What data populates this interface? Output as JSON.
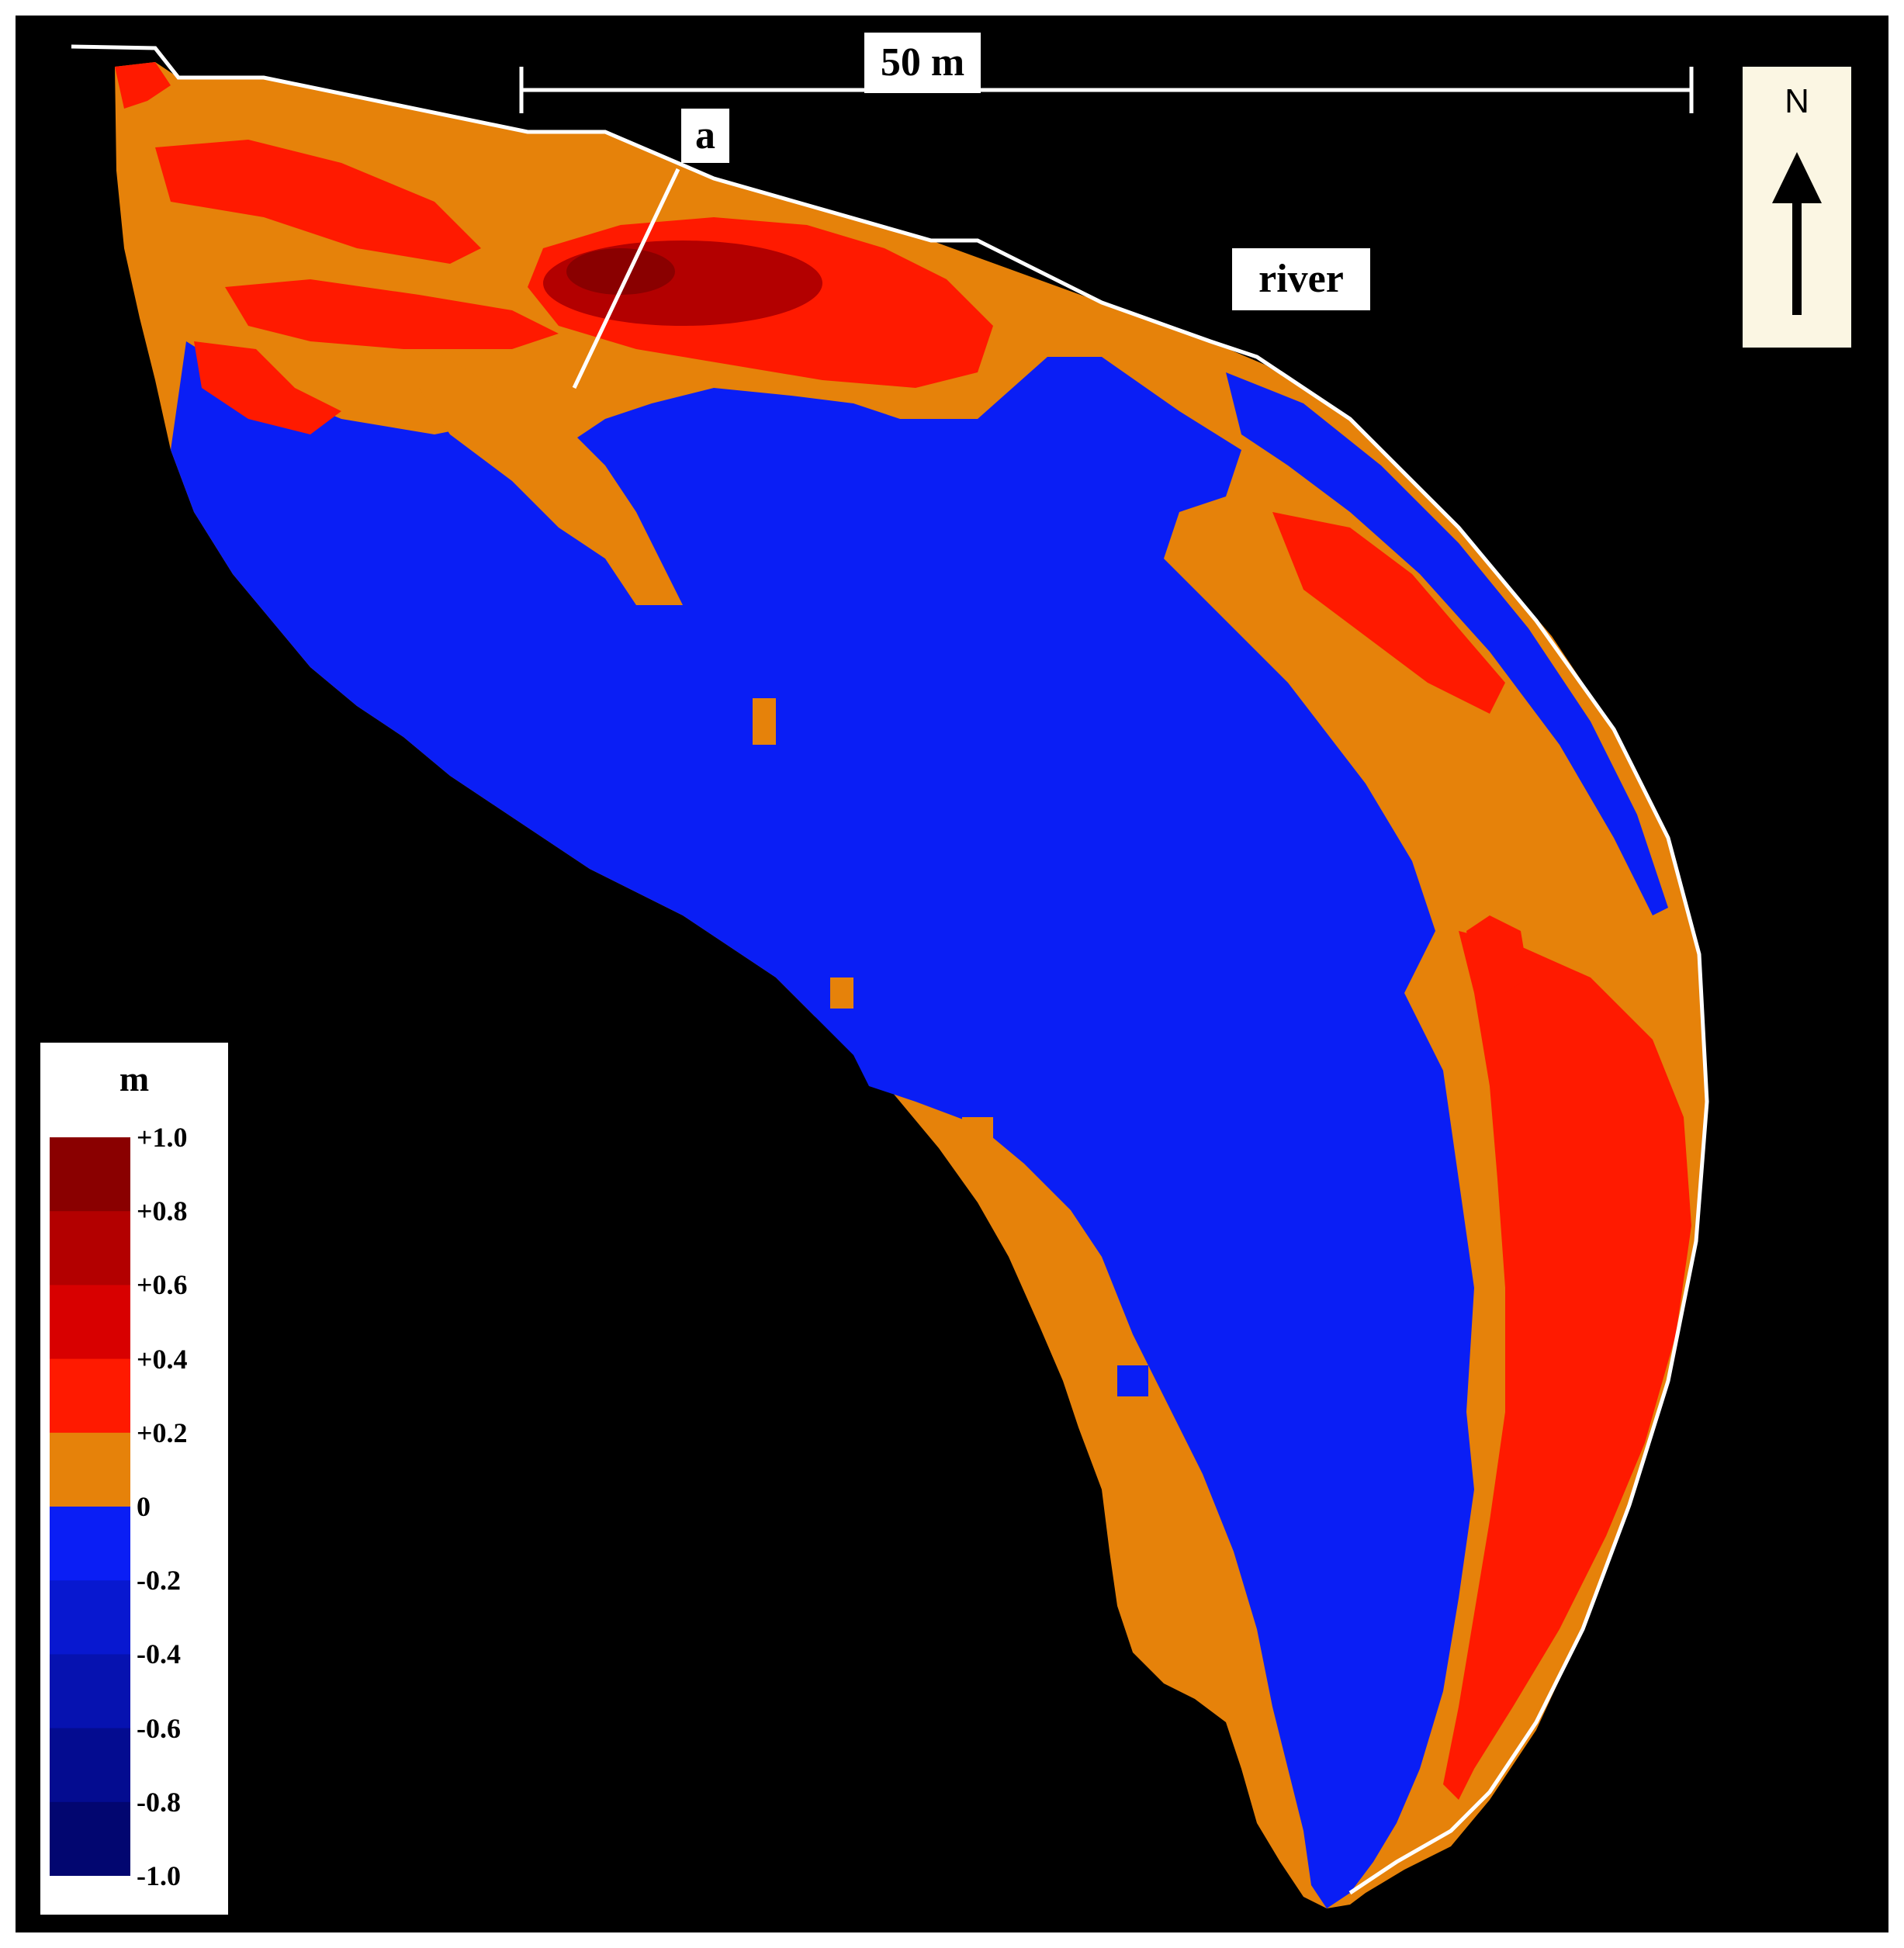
{
  "labels": {
    "scale": "50 m",
    "point": "a",
    "river": "river",
    "north": "N"
  },
  "legend": {
    "unit": "m",
    "ticks": [
      "+1.0",
      "+0.8",
      "+0.6",
      "+0.4",
      "+0.2",
      "0",
      "-0.2",
      "-0.4",
      "-0.6",
      "-0.8",
      "-1.0"
    ],
    "classes": [
      {
        "range": "+0.8 to +1.0",
        "color": "#8a0000"
      },
      {
        "range": "+0.6 to +0.8",
        "color": "#b30000"
      },
      {
        "range": "+0.4 to +0.6",
        "color": "#d80000"
      },
      {
        "range": "+0.2 to +0.4",
        "color": "#ff1a00"
      },
      {
        "range": "0 to +0.2",
        "color": "#e6820a"
      },
      {
        "range": "-0.2 to 0",
        "color": "#0a1ef5"
      },
      {
        "range": "-0.4 to -0.2",
        "color": "#0818d0"
      },
      {
        "range": "-0.6 to -0.4",
        "color": "#0612b0"
      },
      {
        "range": "-0.8 to -0.6",
        "color": "#040c90"
      },
      {
        "range": "-1.0 to -0.8",
        "color": "#020670"
      }
    ]
  },
  "colors": {
    "background": "#000000",
    "outline": "#ffffff",
    "deposition_low": "#e6820a",
    "deposition_high": "#ff1a00",
    "deposition_peak": "#a80000",
    "erosion": "#0a1ef5"
  }
}
